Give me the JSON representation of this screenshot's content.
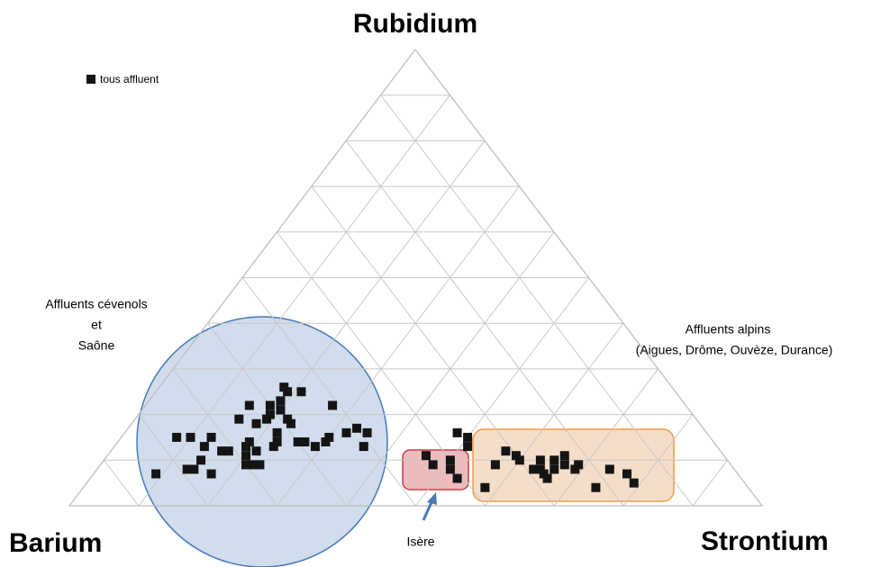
{
  "chart_data": {
    "type": "ternary",
    "axis_labels": {
      "top": "Rubidium",
      "left": "Barium",
      "right": "Strontium"
    },
    "grid_ticks": [
      0,
      10,
      20,
      30,
      40,
      50,
      60,
      70,
      80,
      90,
      100
    ],
    "grid": true,
    "annotations": {
      "cevenols": [
        "Affluents cévenols",
        "et",
        "Saône"
      ],
      "alpins": [
        "Affluents alpins",
        "(Aigues, Drôme, Ouvèze, Durance)"
      ],
      "isere": "Isère"
    },
    "legend": "top-left",
    "series": [
      {
        "name": "tous affluent",
        "color": "#141414",
        "barium": [
          84,
          77,
          75,
          79,
          76,
          74,
          72,
          78,
          76,
          72,
          71,
          66,
          68,
          67,
          70,
          69,
          69,
          68,
          63,
          67,
          64,
          62,
          61,
          60,
          62,
          64,
          63,
          58,
          56,
          56,
          59,
          59,
          59,
          60,
          54,
          59,
          58,
          56,
          51,
          55,
          52,
          50,
          51,
          49,
          43,
          43,
          40,
          41,
          41,
          36,
          36,
          35,
          38,
          34,
          31,
          30,
          30,
          29,
          27,
          28,
          28,
          28,
          25,
          26,
          24,
          23,
          22,
          22,
          18,
          16,
          16,
          23
        ],
        "strontium": [
          9,
          8,
          10,
          13,
          14,
          13,
          13,
          14,
          17,
          16,
          17,
          15,
          19,
          19,
          21,
          20,
          22,
          23,
          15,
          21,
          18,
          19,
          19,
          18,
          22,
          23,
          23,
          19,
          18,
          19,
          20,
          22,
          23,
          26,
          21,
          27,
          29,
          30,
          27,
          30,
          32,
          33,
          36,
          35,
          46,
          48,
          50,
          51,
          53,
          48,
          51,
          50,
          58,
          57,
          57,
          59,
          60,
          63,
          63,
          64,
          65,
          66,
          65,
          66,
          67,
          69,
          69,
          74,
          74,
          77,
          79,
          66
        ],
        "rubidium": [
          7,
          15,
          15,
          8,
          10,
          13,
          15,
          8,
          7,
          12,
          12,
          19,
          13,
          14,
          9,
          11,
          9,
          9,
          22,
          12,
          18,
          19,
          20,
          22,
          16,
          13,
          14,
          23,
          26,
          25,
          21,
          19,
          18,
          14,
          25,
          14,
          13,
          14,
          22,
          15,
          16,
          17,
          13,
          16,
          11,
          9,
          10,
          8,
          6,
          16,
          13,
          15,
          4,
          9,
          12,
          11,
          10,
          8,
          10,
          8,
          7,
          6,
          10,
          8,
          9,
          8,
          9,
          4,
          8,
          7,
          5,
          11
        ]
      }
    ]
  }
}
